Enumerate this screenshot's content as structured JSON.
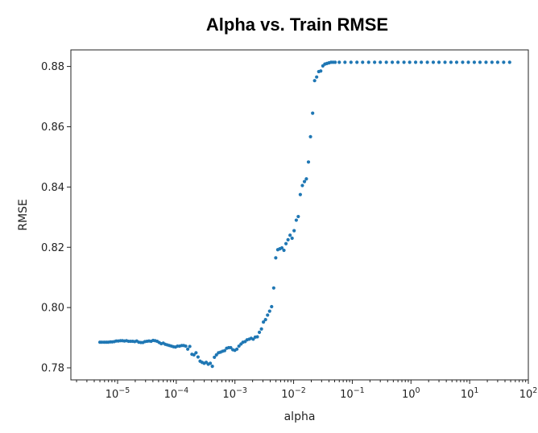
{
  "chart_data": {
    "type": "scatter",
    "title": "Alpha vs. Train RMSE",
    "xlabel": "alpha",
    "ylabel": "RMSE",
    "xscale": "log",
    "xlim": [
      1.6e-06,
      100
    ],
    "ylim": [
      0.776,
      0.8855
    ],
    "grid": false,
    "color": "#1f77b4",
    "yticks": [
      {
        "value": 0.78,
        "label": "0.78"
      },
      {
        "value": 0.8,
        "label": "0.80"
      },
      {
        "value": 0.82,
        "label": "0.82"
      },
      {
        "value": 0.84,
        "label": "0.84"
      },
      {
        "value": 0.86,
        "label": "0.86"
      },
      {
        "value": 0.88,
        "label": "0.88"
      }
    ],
    "xticks": [
      {
        "value": 1e-05,
        "base": "10",
        "exp": "−5"
      },
      {
        "value": 0.0001,
        "base": "10",
        "exp": "−4"
      },
      {
        "value": 0.001,
        "base": "10",
        "exp": "−3"
      },
      {
        "value": 0.01,
        "base": "10",
        "exp": "−2"
      },
      {
        "value": 0.1,
        "base": "10",
        "exp": "−1"
      },
      {
        "value": 1,
        "base": "10",
        "exp": "0"
      },
      {
        "value": 10,
        "base": "10",
        "exp": "1"
      },
      {
        "value": 100,
        "base": "10",
        "exp": "2"
      }
    ],
    "series": [
      {
        "points": [
          [
            5e-06,
            0.7885
          ],
          [
            5.4e-06,
            0.7885
          ],
          [
            5.9e-06,
            0.7885
          ],
          [
            6.4e-06,
            0.7885
          ],
          [
            6.9e-06,
            0.7885
          ],
          [
            7.5e-06,
            0.7886
          ],
          [
            8.1e-06,
            0.7886
          ],
          [
            8.8e-06,
            0.7887
          ],
          [
            9.5e-06,
            0.7889
          ],
          [
            1.03e-05,
            0.7889
          ],
          [
            1.12e-05,
            0.789
          ],
          [
            1.21e-05,
            0.789
          ],
          [
            1.31e-05,
            0.7889
          ],
          [
            1.42e-05,
            0.789
          ],
          [
            1.54e-05,
            0.7888
          ],
          [
            1.67e-05,
            0.7888
          ],
          [
            1.81e-05,
            0.7888
          ],
          [
            1.96e-05,
            0.7887
          ],
          [
            2.12e-05,
            0.7889
          ],
          [
            2.3e-05,
            0.7885
          ],
          [
            2.49e-05,
            0.7884
          ],
          [
            2.7e-05,
            0.7884
          ],
          [
            2.92e-05,
            0.7887
          ],
          [
            3.17e-05,
            0.7888
          ],
          [
            3.43e-05,
            0.7889
          ],
          [
            3.72e-05,
            0.7888
          ],
          [
            4.03e-05,
            0.7891
          ],
          [
            4.36e-05,
            0.789
          ],
          [
            4.73e-05,
            0.7888
          ],
          [
            5.12e-05,
            0.7884
          ],
          [
            5.55e-05,
            0.788
          ],
          [
            6.01e-05,
            0.7882
          ],
          [
            6.51e-05,
            0.7878
          ],
          [
            7.06e-05,
            0.7876
          ],
          [
            7.65e-05,
            0.7874
          ],
          [
            8.28e-05,
            0.7872
          ],
          [
            8.97e-05,
            0.787
          ],
          [
            9.72e-05,
            0.7869
          ],
          [
            0.000105,
            0.7872
          ],
          [
            0.000114,
            0.7872
          ],
          [
            0.000124,
            0.7874
          ],
          [
            0.000134,
            0.7874
          ],
          [
            0.000145,
            0.7872
          ],
          [
            0.000157,
            0.7862
          ],
          [
            0.00017,
            0.7871
          ],
          [
            0.000185,
            0.7845
          ],
          [
            0.0002,
            0.7843
          ],
          [
            0.000217,
            0.785
          ],
          [
            0.000235,
            0.7836
          ],
          [
            0.000255,
            0.7822
          ],
          [
            0.000276,
            0.7818
          ],
          [
            0.000299,
            0.7815
          ],
          [
            0.000324,
            0.7818
          ],
          [
            0.000351,
            0.7812
          ],
          [
            0.00038,
            0.7815
          ],
          [
            0.000412,
            0.7805
          ],
          [
            0.000447,
            0.7835
          ],
          [
            0.000484,
            0.7843
          ],
          [
            0.000524,
            0.785
          ],
          [
            0.000568,
            0.7852
          ],
          [
            0.000615,
            0.7855
          ],
          [
            0.000667,
            0.7857
          ],
          [
            0.000723,
            0.7865
          ],
          [
            0.000783,
            0.7867
          ],
          [
            0.000848,
            0.7867
          ],
          [
            0.000919,
            0.786
          ],
          [
            0.000996,
            0.7858
          ],
          [
            0.00108,
            0.7862
          ],
          [
            0.00117,
            0.7872
          ],
          [
            0.00127,
            0.7879
          ],
          [
            0.00137,
            0.7885
          ],
          [
            0.00149,
            0.7887
          ],
          [
            0.00161,
            0.7893
          ],
          [
            0.00175,
            0.7895
          ],
          [
            0.00189,
            0.7898
          ],
          [
            0.00205,
            0.7895
          ],
          [
            0.00222,
            0.7902
          ],
          [
            0.00241,
            0.7903
          ],
          [
            0.00261,
            0.7918
          ],
          [
            0.00283,
            0.7929
          ],
          [
            0.00306,
            0.7952
          ],
          [
            0.00332,
            0.796
          ],
          [
            0.0036,
            0.7975
          ],
          [
            0.0039,
            0.7988
          ],
          [
            0.00422,
            0.8003
          ],
          [
            0.00458,
            0.8065
          ],
          [
            0.00496,
            0.8165
          ],
          [
            0.00537,
            0.8192
          ],
          [
            0.00582,
            0.8195
          ],
          [
            0.00631,
            0.8198
          ],
          [
            0.00684,
            0.819
          ],
          [
            0.00741,
            0.8212
          ],
          [
            0.00803,
            0.8225
          ],
          [
            0.0087,
            0.824
          ],
          [
            0.00943,
            0.823
          ],
          [
            0.0102,
            0.8255
          ],
          [
            0.0111,
            0.829
          ],
          [
            0.012,
            0.8302
          ],
          [
            0.013,
            0.8375
          ],
          [
            0.0141,
            0.8405
          ],
          [
            0.0153,
            0.8418
          ],
          [
            0.0165,
            0.8427
          ],
          [
            0.0179,
            0.8483
          ],
          [
            0.0194,
            0.8567
          ],
          [
            0.0211,
            0.8645
          ],
          [
            0.0228,
            0.8753
          ],
          [
            0.0247,
            0.8765
          ],
          [
            0.0268,
            0.8783
          ],
          [
            0.029,
            0.8785
          ],
          [
            0.0315,
            0.8802
          ],
          [
            0.0341,
            0.8808
          ],
          [
            0.0369,
            0.881
          ],
          [
            0.04,
            0.8812
          ],
          [
            0.0434,
            0.8814
          ],
          [
            0.047,
            0.8814
          ],
          [
            0.051,
            0.8814
          ],
          [
            0.06,
            0.8814
          ],
          [
            0.075,
            0.8814
          ],
          [
            0.095,
            0.8814
          ],
          [
            0.12,
            0.8814
          ],
          [
            0.15,
            0.8814
          ],
          [
            0.19,
            0.8814
          ],
          [
            0.24,
            0.8814
          ],
          [
            0.3,
            0.8814
          ],
          [
            0.38,
            0.8814
          ],
          [
            0.48,
            0.8814
          ],
          [
            0.6,
            0.8814
          ],
          [
            0.76,
            0.8814
          ],
          [
            0.95,
            0.8814
          ],
          [
            1.2,
            0.8814
          ],
          [
            1.5,
            0.8814
          ],
          [
            1.9,
            0.8814
          ],
          [
            2.4,
            0.8814
          ],
          [
            3.0,
            0.8814
          ],
          [
            3.8,
            0.8814
          ],
          [
            4.8,
            0.8814
          ],
          [
            6.0,
            0.8814
          ],
          [
            7.6,
            0.8814
          ],
          [
            9.5,
            0.8814
          ],
          [
            12,
            0.8814
          ],
          [
            15,
            0.8814
          ],
          [
            19,
            0.8814
          ],
          [
            24,
            0.8814
          ],
          [
            30,
            0.8814
          ],
          [
            38,
            0.8814
          ],
          [
            48,
            0.8814
          ]
        ]
      }
    ]
  }
}
